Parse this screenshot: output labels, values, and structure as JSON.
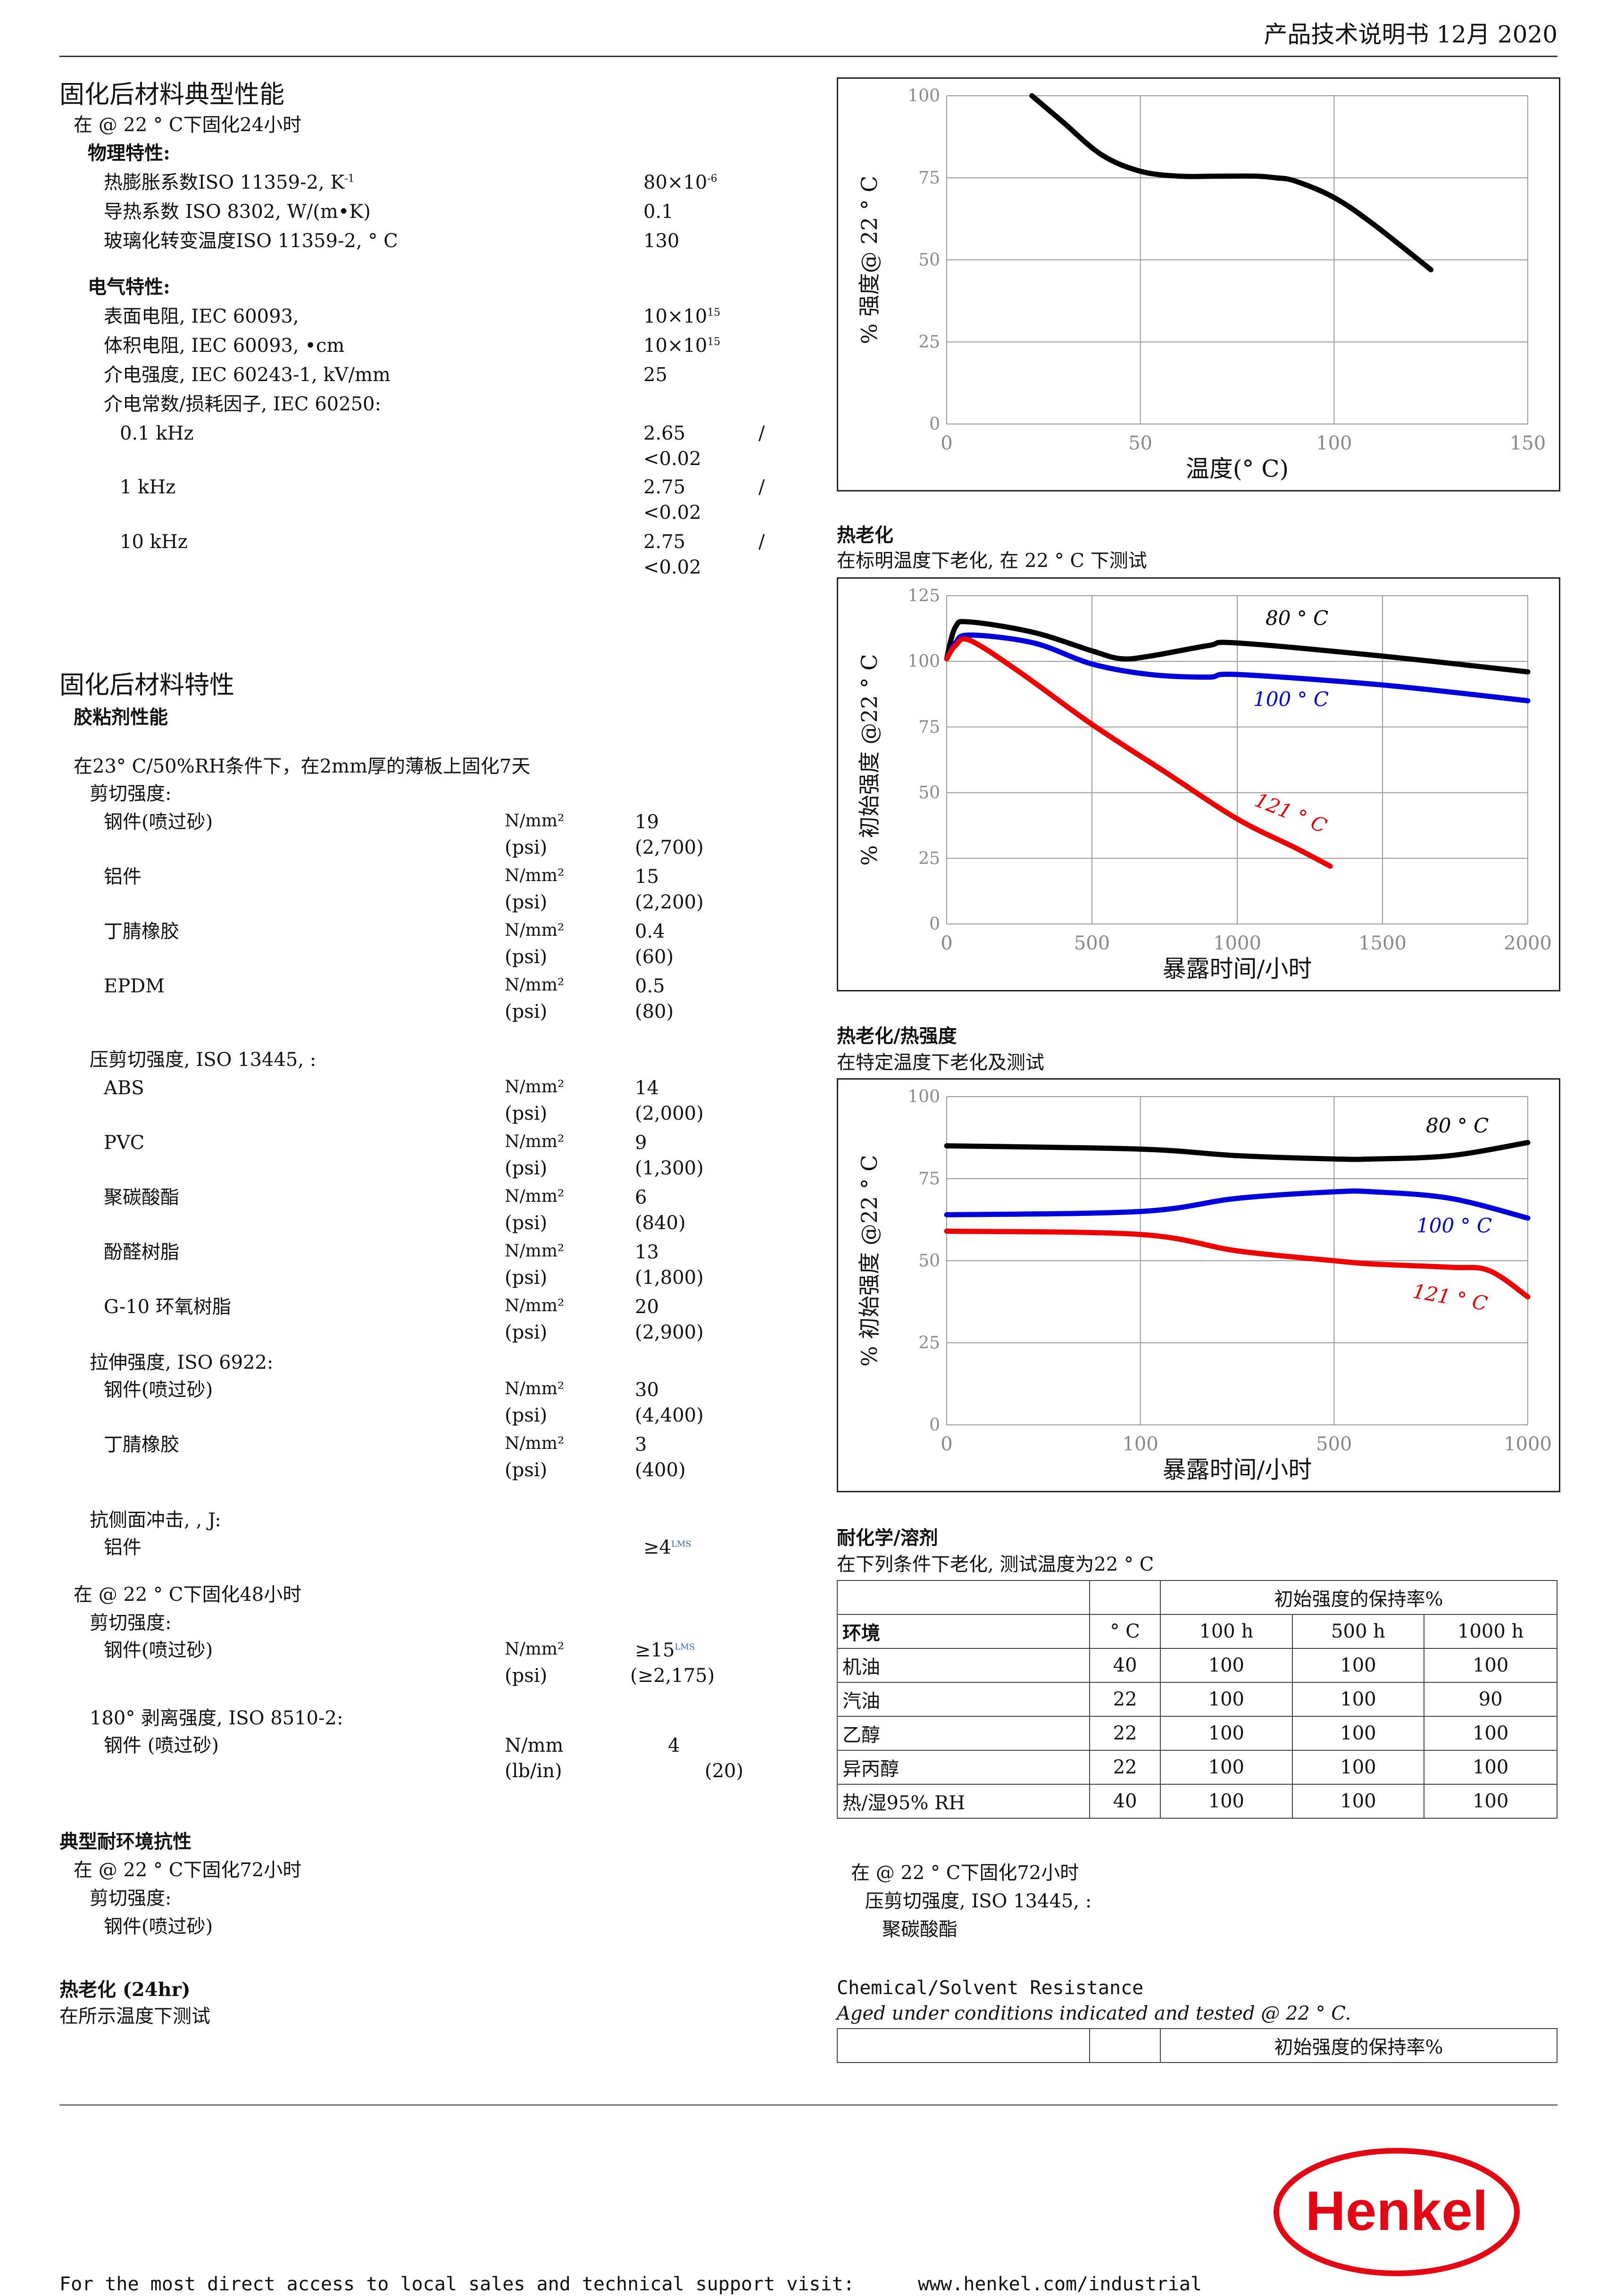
{
  "header": {
    "title": "产品技术说明书 12月 2020"
  },
  "left": {
    "typical": {
      "title": "固化后材料典型性能",
      "cure": "在  @ 22 ° C下固化24小时",
      "physical_title": "物理特性:",
      "physical": [
        {
          "label": "热膨胀系数ISO 11359-2, K",
          "sup": "-1",
          "value": "80×10",
          "vsup": "-6"
        },
        {
          "label": "导热系数  ISO 8302,  W/(m•K)",
          "sup": "",
          "value": "0.1",
          "vsup": ""
        },
        {
          "label": "玻璃化转变温度ISO 11359-2, ° C",
          "sup": "",
          "value": "130",
          "vsup": ""
        }
      ],
      "electrical_title": "电气特性:",
      "electrical": [
        {
          "label": "表面电阻, IEC 60093,",
          "value": "10×10",
          "vsup": "15"
        },
        {
          "label": "体积电阻, IEC 60093,  •cm",
          "value": "10×10",
          "vsup": "15"
        },
        {
          "label": "介电强度, IEC 60243-1, kV/mm",
          "value": "25",
          "vsup": ""
        },
        {
          "label": "介电常数/损耗因子, IEC 60250:",
          "value": "",
          "vsup": ""
        }
      ],
      "dielectric": [
        {
          "label": "0.1 kHz",
          "v1": "2.65",
          "sep": "/",
          "v2": "<0.02"
        },
        {
          "label": "1 kHz",
          "v1": "2.75",
          "sep": "/",
          "v2": "<0.02"
        },
        {
          "label": "10 kHz",
          "v1": "2.75",
          "sep": "/",
          "v2": "<0.02"
        }
      ]
    },
    "cured": {
      "title": "固化后材料特性",
      "adhesive_title": "胶粘剂性能",
      "cond": "在23° C/50%RH条件下，在2mm厚的薄板上固化7天",
      "shear_title": "剪切强度:",
      "shear": [
        {
          "label": "钢件(喷过砂)",
          "u1": "N/mm²",
          "v1": "19",
          "u2": "(psi)",
          "v2": "(2,700)"
        },
        {
          "label": "铝件",
          "u1": "N/mm²",
          "v1": "15",
          "u2": "(psi)",
          "v2": "(2,200)"
        },
        {
          "label": "丁腈橡胶",
          "u1": "N/mm²",
          "v1": "0.4",
          "u2": "(psi)",
          "v2": "(60)"
        },
        {
          "label": "EPDM",
          "u1": "N/mm²",
          "v1": "0.5",
          "u2": "(psi)",
          "v2": "(80)"
        }
      ],
      "compress_title": "压剪切强度, ISO 13445,   :",
      "compress": [
        {
          "label": "ABS",
          "u1": "N/mm²",
          "v1": "14",
          "u2": "(psi)",
          "v2": "(2,000)"
        },
        {
          "label": "PVC",
          "u1": "N/mm²",
          "v1": "9",
          "u2": "(psi)",
          "v2": "(1,300)"
        },
        {
          "label": "聚碳酸酯",
          "u1": "N/mm²",
          "v1": "6",
          "u2": "(psi)",
          "v2": "(840)"
        },
        {
          "label": "酚醛树脂",
          "u1": "N/mm²",
          "v1": "13",
          "u2": "(psi)",
          "v2": "(1,800)"
        },
        {
          "label": "G-10 环氧树脂",
          "u1": "N/mm²",
          "v1": "20",
          "u2": "(psi)",
          "v2": "(2,900)"
        }
      ],
      "tensile_title": "拉伸强度, ISO 6922:",
      "tensile": [
        {
          "label": "钢件(喷过砂)",
          "u1": "N/mm²",
          "v1": "30",
          "u2": "(psi)",
          "v2": "(4,400)"
        },
        {
          "label": "丁腈橡胶",
          "u1": "N/mm²",
          "v1": "3",
          "u2": "(psi)",
          "v2": "(400)"
        }
      ],
      "impact_title": "抗侧面冲击,  ,   J:",
      "impact_label": "铝件",
      "impact_value": "≥4",
      "impact_sup": "LMS",
      "cure48": "在  @ 22 ° C下固化48小时",
      "shear48_title": "剪切强度:",
      "shear48_label": "钢件(喷过砂)",
      "shear48_u1": "N/mm²",
      "shear48_v1": "≥15",
      "shear48_sup": "LMS",
      "shear48_u2": "(psi)",
      "shear48_v2": "(≥2,175)",
      "peel_title": "180°  剥离强度, ISO 8510-2:",
      "peel_label": "钢件  (喷过砂)",
      "peel_u1": "N/mm",
      "peel_v1": "4",
      "peel_u2": "(lb/in)",
      "peel_v2": "(20)"
    },
    "env": {
      "title": "典型耐环境抗性",
      "cure": "在  @ 22 ° C下固化72小时",
      "shear": "剪切强度:",
      "steel": "钢件(喷过砂)",
      "heat_title": "热老化  (24hr)",
      "heat_sub": "在所示温度下测试"
    }
  },
  "charts": {
    "c1": {
      "ylabel": "% 强度@ 22 ° C",
      "xlabel": "温度(° C)",
      "xticks": [
        "0",
        "50",
        "100",
        "150"
      ],
      "yticks": [
        "0",
        "25",
        "50",
        "75",
        "100"
      ]
    },
    "c2": {
      "title": "热老化",
      "subtitle": "在标明温度下老化,     在 22 ° C 下测试",
      "ylabel": "% 初始强度  @22 ° C",
      "xlabel": "暴露时间/小时",
      "xticks": [
        "0",
        "500",
        "1000",
        "1500",
        "2000"
      ],
      "yticks": [
        "0",
        "25",
        "50",
        "75",
        "100",
        "125"
      ],
      "labels": [
        "80 ° C",
        "100 ° C",
        "121 ° C"
      ]
    },
    "c3": {
      "title": "热老化/热强度",
      "subtitle": "在特定温度下老化及测试",
      "ylabel": "% 初始强度  @22 ° C",
      "xlabel": "暴露时间/小时",
      "xticks": [
        "0",
        "100",
        "500",
        "1000"
      ],
      "yticks": [
        "0",
        "25",
        "50",
        "75",
        "100"
      ],
      "labels": [
        "80 ° C",
        "100 ° C",
        "121 ° C"
      ]
    }
  },
  "chart_data": [
    {
      "type": "line",
      "xlabel": "温度(° C)",
      "ylabel": "% 强度@ 22 ° C",
      "xlim": [
        0,
        150
      ],
      "ylim": [
        0,
        100
      ],
      "grid": true,
      "series": [
        {
          "x": [
            22,
            30,
            40,
            50,
            60,
            70,
            80,
            85,
            90,
            100,
            110,
            125
          ],
          "y": [
            100,
            92,
            82,
            77,
            75.5,
            75.5,
            75.5,
            75,
            74,
            69,
            61,
            47
          ],
          "color": "#000000"
        }
      ]
    },
    {
      "type": "line",
      "xlabel": "暴露时间/小时",
      "ylabel": "% 初始强度  @22 ° C",
      "xlim": [
        0,
        2000
      ],
      "ylim": [
        0,
        125
      ],
      "grid": true,
      "series": [
        {
          "name": "80 ° C",
          "color": "#000000",
          "x": [
            0,
            30,
            80,
            300,
            500,
            600,
            700,
            900,
            1000,
            1500,
            2000
          ],
          "y": [
            101,
            113,
            115,
            111,
            104,
            101,
            102,
            106,
            107,
            102,
            96
          ]
        },
        {
          "name": "100 ° C",
          "color": "#0000dd",
          "x": [
            0,
            30,
            80,
            300,
            500,
            700,
            900,
            1000,
            1500,
            2000
          ],
          "y": [
            101,
            107,
            110,
            107,
            99,
            95,
            94,
            95,
            91,
            85
          ]
        },
        {
          "name": "121 ° C",
          "color": "#ee0000",
          "x": [
            0,
            30,
            80,
            250,
            500,
            750,
            1000,
            1200,
            1320
          ],
          "y": [
            101,
            106,
            108,
            96,
            76,
            58,
            40,
            29,
            22
          ]
        }
      ]
    },
    {
      "type": "line",
      "xlabel": "暴露时间/小时",
      "ylabel": "% 初始强度  @22 ° C",
      "x_ticks": [
        0,
        100,
        500,
        1000
      ],
      "xlim": [
        0,
        1000
      ],
      "ylim": [
        0,
        100
      ],
      "grid": true,
      "series": [
        {
          "name": "80 ° C",
          "color": "#000000",
          "x": [
            0,
            100,
            300,
            500,
            600,
            800,
            1000
          ],
          "y": [
            85,
            84,
            82,
            81,
            81,
            82,
            86
          ]
        },
        {
          "name": "100 ° C",
          "color": "#0000dd",
          "x": [
            0,
            100,
            300,
            500,
            600,
            800,
            1000
          ],
          "y": [
            64,
            65,
            69,
            71,
            71,
            69,
            63
          ]
        },
        {
          "name": "121 ° C",
          "color": "#ee0000",
          "x": [
            0,
            100,
            300,
            500,
            600,
            800,
            900,
            1000
          ],
          "y": [
            59,
            58,
            53,
            50,
            49,
            48,
            47,
            39
          ]
        }
      ]
    }
  ],
  "chem": {
    "title": "耐化学/溶剂",
    "subtitle": "在下列条件下老化, 测试温度为22 ° C",
    "group_header": "初始强度的保持率%",
    "columns": [
      "环境",
      "° C",
      "100 h",
      "500 h",
      "1000 h"
    ],
    "rows": [
      [
        "机油",
        "40",
        "100",
        "100",
        "100"
      ],
      [
        "汽油",
        "22",
        "100",
        "100",
        "90"
      ],
      [
        "乙醇",
        "22",
        "100",
        "100",
        "100"
      ],
      [
        "异丙醇",
        "22",
        "100",
        "100",
        "100"
      ],
      [
        "热/湿95% RH",
        "40",
        "100",
        "100",
        "100"
      ]
    ]
  },
  "right_bottom": {
    "cure": "在  @ 22 ° C下固化72小时",
    "compress": "压剪切强度, ISO 13445,   :",
    "pc": "聚碳酸酯",
    "en_title": "Chemical/Solvent Resistance",
    "en_sub": "Aged under conditions indicated and tested  @ 22 ° C.",
    "en_header": "初始强度的保持率%"
  },
  "footer": {
    "text": "For the most direct access to local sales and technical support visit:",
    "url": "www.henkel.com/industrial",
    "logo": "Henkel"
  }
}
